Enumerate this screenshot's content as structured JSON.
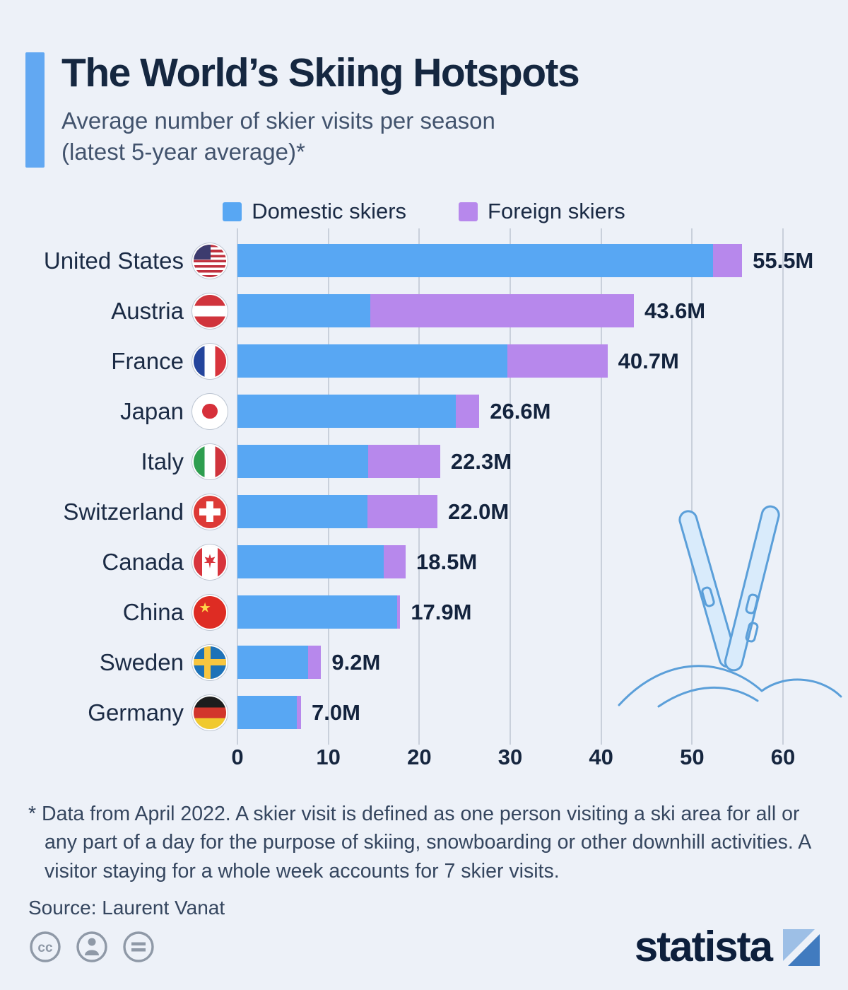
{
  "header": {
    "title": "The World’s Skiing Hotspots",
    "subtitle_line1": "Average number of skier visits per season",
    "subtitle_line2": "(latest 5-year average)*"
  },
  "legend": {
    "domestic_label": "Domestic skiers",
    "foreign_label": "Foreign skiers"
  },
  "colors": {
    "domestic": "#58a7f3",
    "foreign": "#b788ec",
    "background": "#edf1f8",
    "accent_bar": "#62a8f2",
    "gridline": "#c9d0db"
  },
  "chart_data": {
    "type": "bar",
    "orientation": "horizontal",
    "stacked": true,
    "title": "The World’s Skiing Hotspots",
    "subtitle": "Average number of skier visits per season (latest 5-year average)*",
    "unit": "million skier visits",
    "categories": [
      "United States",
      "Austria",
      "France",
      "Japan",
      "Italy",
      "Switzerland",
      "Canada",
      "China",
      "Sweden",
      "Germany"
    ],
    "flags": [
      "us",
      "at",
      "fr",
      "jp",
      "it",
      "ch",
      "ca",
      "cn",
      "se",
      "de"
    ],
    "series": [
      {
        "name": "Domestic skiers",
        "color": "#58a7f3",
        "values": [
          52.3,
          14.6,
          29.7,
          24.0,
          14.4,
          14.3,
          16.1,
          17.6,
          7.8,
          6.5
        ]
      },
      {
        "name": "Foreign skiers",
        "color": "#b788ec",
        "values": [
          3.2,
          29.0,
          11.0,
          2.6,
          7.9,
          7.7,
          2.4,
          0.3,
          1.4,
          0.5
        ]
      }
    ],
    "totals": [
      55.5,
      43.6,
      40.7,
      26.6,
      22.3,
      22.0,
      18.5,
      17.9,
      9.2,
      7.0
    ],
    "total_labels": [
      "55.5M",
      "43.6M",
      "40.7M",
      "26.6M",
      "22.3M",
      "22.0M",
      "18.5M",
      "17.9M",
      "9.2M",
      "7.0M"
    ],
    "x_ticks": [
      0,
      10,
      20,
      30,
      40,
      50,
      60
    ],
    "xlim": [
      0,
      60
    ],
    "grid": true,
    "legend_position": "top"
  },
  "footnote": {
    "text": "* Data from April 2022. A skier visit is defined as one person visiting a ski area for all or any part of a day for the purpose of skiing, snowboarding or other downhill activities. A visitor staying for a whole week accounts for 7 skier visits."
  },
  "source": "Source: Laurent Vanat",
  "footer": {
    "brand": "statista"
  }
}
